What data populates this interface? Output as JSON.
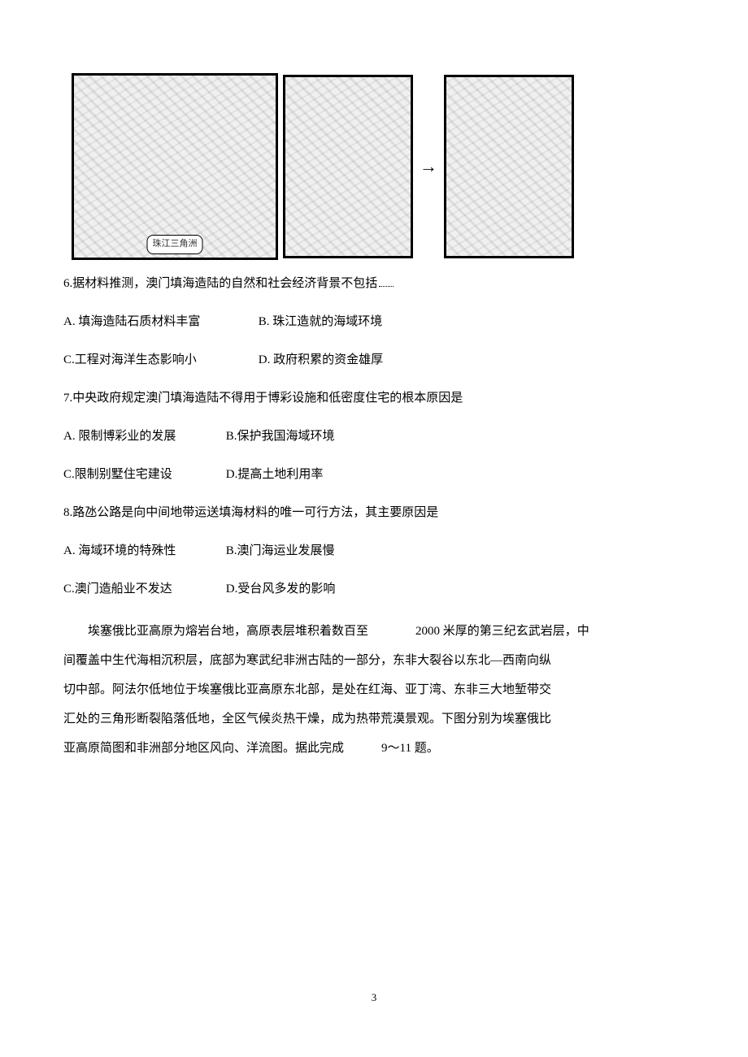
{
  "figures": {
    "map1_label": "珠江三角洲",
    "map2_label": "",
    "map3_label": ""
  },
  "q6": {
    "stem": "6.据材料推测，澳门填海造陆的自然和社会经济背景不包括",
    "A": "A. 填海造陆石质材料丰富",
    "B": "B. 珠江造就的海域环境",
    "C": "C.工程对海洋生态影响小",
    "D": "D. 政府积累的资金雄厚"
  },
  "q7": {
    "stem": "7.中央政府规定澳门填海造陆不得用于博彩设施和低密度住宅的根本原因是",
    "A": "A. 限制博彩业的发展",
    "B": "B.保护我国海域环境",
    "C": "C.限制别墅住宅建设",
    "D": "D.提高土地利用率"
  },
  "q8": {
    "stem": "8.路氹公路是向中间地带运送填海材料的唯一可行方法，其主要原因是",
    "A": "A. 海域环境的特殊性",
    "B": "B.澳门海运业发展慢",
    "C": "C.澳门造船业不发达",
    "D": "D.受台风多发的影响"
  },
  "passage": {
    "part1": "埃塞俄比亚高原为熔岩台地，高原表层堆积着数百至",
    "num": "2000",
    "part2": "米厚的第三纪玄武岩层，中",
    "line2": "间覆盖中生代海相沉积层，底部为寒武纪非洲古陆的一部分，东非大裂谷以东北—西南向纵",
    "line3": "切中部。阿法尔低地位于埃塞俄比亚高原东北部，是处在红海、亚丁湾、东非三大地堑带交",
    "line4": "汇处的三角形断裂陷落低地，全区气候炎热干燥，成为热带荒漠景观。下图分别为埃塞俄比",
    "line5a": "亚高原简图和非洲部分地区风向、洋流图。据此完成",
    "qrange": "9～11",
    "line5b": "题。"
  },
  "page_number": "3"
}
